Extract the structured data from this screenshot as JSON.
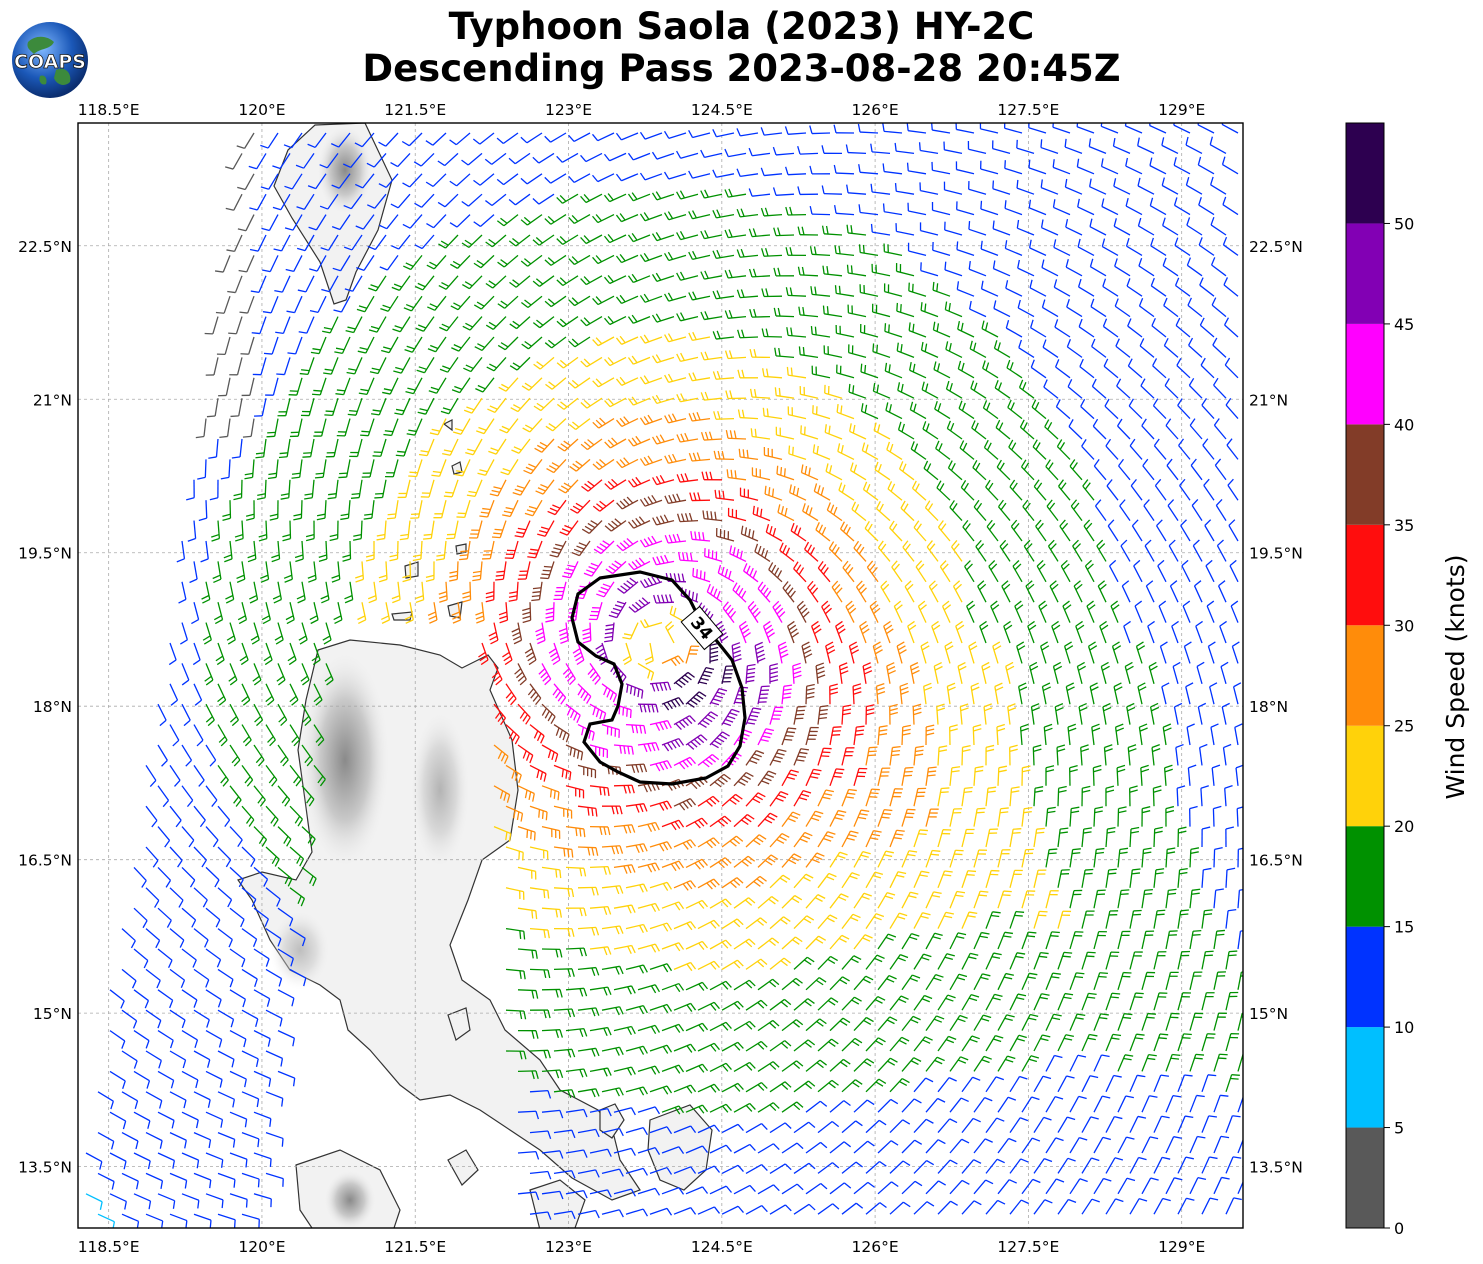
{
  "title": {
    "line1": "Typhoon Saola (2023) HY-2C",
    "line2": "Descending Pass 2023-08-28 20:45Z"
  },
  "logo": {
    "text": "COAPS",
    "icon": "globe-logo-icon"
  },
  "map": {
    "lon_range": [
      118.2,
      129.6
    ],
    "lat_range": [
      12.9,
      23.7
    ],
    "lon_ticks": [
      "118.5°E",
      "120°E",
      "121.5°E",
      "123°E",
      "124.5°E",
      "126°E",
      "127.5°E",
      "129°E"
    ],
    "lon_tick_values": [
      118.5,
      120,
      121.5,
      123,
      124.5,
      126,
      127.5,
      129
    ],
    "lat_ticks": [
      "22.5°N",
      "21°N",
      "19.5°N",
      "18°N",
      "16.5°N",
      "15°N",
      "13.5°N"
    ],
    "lat_tick_values": [
      22.5,
      21,
      19.5,
      18,
      16.5,
      15,
      13.5
    ],
    "gridlines": true,
    "storm_center": [
      123.9,
      18.6
    ],
    "contour_label": "34",
    "contour_knots": 34
  },
  "colorbar": {
    "label": "Wind Speed (knots)",
    "ticks": [
      "0",
      "5",
      "10",
      "15",
      "20",
      "25",
      "30",
      "35",
      "40",
      "45",
      "50"
    ],
    "tick_values": [
      0,
      5,
      10,
      15,
      20,
      25,
      30,
      35,
      40,
      45,
      50
    ],
    "max": 55,
    "bins": [
      {
        "min": 0,
        "max": 5,
        "color": "#595959"
      },
      {
        "min": 5,
        "max": 10,
        "color": "#00bfff"
      },
      {
        "min": 10,
        "max": 15,
        "color": "#0033ff"
      },
      {
        "min": 15,
        "max": 20,
        "color": "#009100"
      },
      {
        "min": 20,
        "max": 25,
        "color": "#ffd20a"
      },
      {
        "min": 25,
        "max": 30,
        "color": "#ff8c0a"
      },
      {
        "min": 30,
        "max": 35,
        "color": "#ff0d0d"
      },
      {
        "min": 35,
        "max": 40,
        "color": "#823c28"
      },
      {
        "min": 40,
        "max": 45,
        "color": "#ff00ff"
      },
      {
        "min": 45,
        "max": 50,
        "color": "#8200b4"
      },
      {
        "min": 50,
        "max": 55,
        "color": "#2d0050"
      }
    ]
  },
  "colors": {
    "land": "#f2f2f2",
    "coastline": "#333333",
    "grid": "#aaaaaa"
  }
}
